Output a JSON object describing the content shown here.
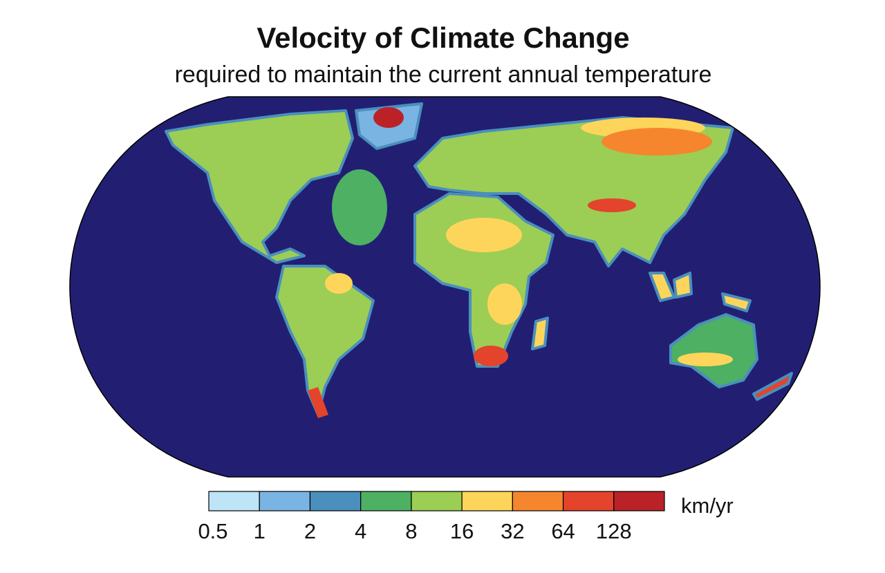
{
  "title": "Velocity of Climate Change",
  "subtitle": "required to maintain the current annual temperature",
  "legend": {
    "unit": "km/yr",
    "colors": [
      "#bde4f7",
      "#7ab4e3",
      "#4a8fbd",
      "#4db062",
      "#9ccd54",
      "#fdd55a",
      "#f5862e",
      "#e4432c",
      "#bb2227"
    ],
    "ticks": [
      0.5,
      1,
      2,
      4,
      8,
      16,
      32,
      64,
      128
    ]
  }
}
